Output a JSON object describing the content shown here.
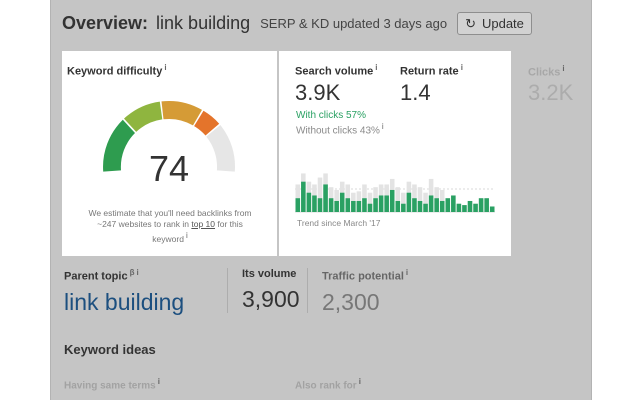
{
  "header": {
    "title": "Overview:",
    "keyword": "link building",
    "updated": "SERP & KD updated 3 days ago",
    "update_button": "Update"
  },
  "keyword_difficulty": {
    "label": "Keyword difficulty",
    "info": "i",
    "score": "74",
    "description_pre": "We estimate that you'll need backlinks from ~247 websites to rank in ",
    "description_link": "top 10",
    "description_post": " for this keyword",
    "description_info": "i"
  },
  "search_volume": {
    "label": "Search volume",
    "info": "i",
    "value": "3.9K",
    "with_clicks": "With clicks 57%",
    "without_clicks": "Without clicks 43%",
    "without_info": "i",
    "trend_label": "Trend since March '17"
  },
  "return_rate": {
    "label": "Return rate",
    "info": "i",
    "value": "1.4"
  },
  "clicks": {
    "label": "Clicks",
    "info": "i",
    "value": "3.2K"
  },
  "parent_topic": {
    "label": "Parent topic",
    "beta": "β",
    "info": "i",
    "value": "link building"
  },
  "its_volume": {
    "label": "Its volume",
    "value": "3,900"
  },
  "traffic_potential": {
    "label": "Traffic potential",
    "info": "i",
    "value": "2,300"
  },
  "keyword_ideas": {
    "heading": "Keyword ideas",
    "having_same_terms": "Having same terms",
    "having_info": "i",
    "also_rank_for": "Also rank for",
    "also_info": "i"
  },
  "colors": {
    "page_overlay": "#c5c5c5",
    "green": "#2aa163",
    "gray_bar": "#e3e3e3",
    "link_blue": "#1c4f7f"
  },
  "chart_data": {
    "type": "bar",
    "x_label": "Trend since March '17",
    "series": [
      {
        "values": [
          20,
          28,
          22,
          20,
          25,
          28,
          18,
          16,
          22,
          20,
          14,
          15,
          20,
          14,
          18,
          20,
          20,
          24,
          18,
          14,
          22,
          20,
          18,
          14,
          24,
          18,
          16,
          10,
          12,
          6,
          5,
          8,
          6,
          10,
          10,
          4
        ]
      },
      {
        "values": [
          10,
          22,
          14,
          12,
          10,
          20,
          10,
          8,
          14,
          10,
          8,
          8,
          10,
          6,
          10,
          12,
          12,
          16,
          8,
          6,
          14,
          10,
          8,
          6,
          12,
          10,
          8,
          10,
          12,
          6,
          5,
          8,
          6,
          10,
          10,
          4
        ]
      }
    ],
    "ylim": [
      0,
      45
    ]
  }
}
